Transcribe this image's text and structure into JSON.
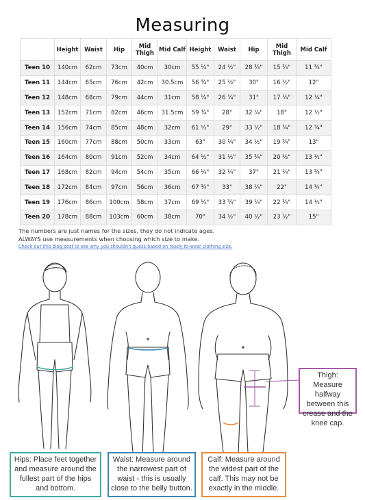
{
  "title": "Measuring",
  "table": {
    "headers": [
      "",
      "Height",
      "Waist",
      "Hip",
      "Mid Thigh",
      "Mid Calf",
      "Height",
      "Waist",
      "Hip",
      "Mid Thigh",
      "Mid Calf"
    ],
    "rows": [
      [
        "Teen 10",
        "140cm",
        "62cm",
        "73cm",
        "40cm",
        "30cm",
        "55 ¼\"",
        "24 ½\"",
        "28 ¾\"",
        "15 ¾\"",
        "11 ¾\""
      ],
      [
        "Teen 11",
        "144cm",
        "65cm",
        "76cm",
        "42cm",
        "30.5cm",
        "56 ¾\"",
        "25 ½\"",
        "30\"",
        "16 ½\"",
        "12\""
      ],
      [
        "Teen 12",
        "148cm",
        "68cm",
        "79cm",
        "44cm",
        "31cm",
        "58 ¼\"",
        "26 ¾\"",
        "31\"",
        "17 ¼\"",
        "12 ¼\""
      ],
      [
        "Teen 13",
        "152cm",
        "71cm",
        "82cm",
        "46cm",
        "31.5cm",
        "59 ¾\"",
        "28\"",
        "32 ¼\"",
        "18\"",
        "12 ½\""
      ],
      [
        "Teen 14",
        "156cm",
        "74cm",
        "85cm",
        "48cm",
        "32cm",
        "61 ½\"",
        "29\"",
        "33 ½\"",
        "18 ¾\"",
        "12 ¾\""
      ],
      [
        "Teen 15",
        "160cm",
        "77cm",
        "88cm",
        "50cm",
        "33cm",
        "63\"",
        "30 ¼\"",
        "34 ½\"",
        "19 ¾\"",
        "13\""
      ],
      [
        "Teen 16",
        "164cm",
        "80cm",
        "91cm",
        "52cm",
        "34cm",
        "64 ½\"",
        "31 ½\"",
        "35 ¾\"",
        "20 ½\"",
        "13 ½\""
      ],
      [
        "Teen 17",
        "168cm",
        "82cm",
        "94cm",
        "54cm",
        "35cm",
        "66 ¼\"",
        "32 ¼\"",
        "37\"",
        "21 ¼\"",
        "13 ¾\""
      ],
      [
        "Teen 18",
        "172cm",
        "84cm",
        "97cm",
        "56cm",
        "36cm",
        "67 ¾\"",
        "33\"",
        "38 ¼\"",
        "22\"",
        "14 ¼\""
      ],
      [
        "Teen 19",
        "176cm",
        "86cm",
        "100cm",
        "58cm",
        "37cm",
        "69 ¼\"",
        "33 ¾\"",
        "39 ¼\"",
        "22 ¾\"",
        "14 ½\""
      ],
      [
        "Teen 20",
        "178cm",
        "88cm",
        "103cm",
        "60cm",
        "38cm",
        "70\"",
        "34 ½\"",
        "40 ½\"",
        "23 ½\"",
        "15\""
      ]
    ]
  },
  "notes": {
    "line1": "The numbers are just names for the sizes, they do not indicate ages.",
    "line2": "ALWAYS use measurements when choosing which size to make.",
    "link": "Check out this blog post to see why you shouldn't guess based on ready-to-wear clothing size."
  },
  "callouts": {
    "hips": "Hips: Place feet together and measure around the fullest part of the hips and bottom.",
    "waist": "Waist: Measure around the narrowest part of waist - this is usually close to the belly button.",
    "calf": "Calf: Measure around the widest part of the calf. This may not be exactly in the middle.",
    "thigh": "Thigh: Measure halfway between this crease and the knee cap."
  },
  "colors": {
    "hips": "#44a9a6",
    "waist": "#3b86b8",
    "calf": "#e88b3f",
    "thigh": "#a25aa6",
    "link": "#4a74c9"
  }
}
